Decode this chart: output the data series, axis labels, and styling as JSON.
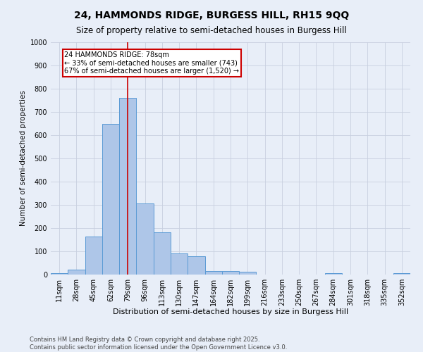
{
  "title1": "24, HAMMONDS RIDGE, BURGESS HILL, RH15 9QQ",
  "title2": "Size of property relative to semi-detached houses in Burgess Hill",
  "xlabel": "Distribution of semi-detached houses by size in Burgess Hill",
  "ylabel": "Number of semi-detached properties",
  "categories": [
    "11sqm",
    "28sqm",
    "45sqm",
    "62sqm",
    "79sqm",
    "96sqm",
    "113sqm",
    "130sqm",
    "147sqm",
    "164sqm",
    "182sqm",
    "199sqm",
    "216sqm",
    "233sqm",
    "250sqm",
    "267sqm",
    "284sqm",
    "301sqm",
    "318sqm",
    "335sqm",
    "352sqm"
  ],
  "values": [
    5,
    22,
    165,
    648,
    760,
    305,
    182,
    90,
    80,
    15,
    15,
    12,
    0,
    0,
    0,
    0,
    5,
    0,
    0,
    0,
    5
  ],
  "bar_color": "#aec6e8",
  "bar_edge_color": "#5b9bd5",
  "property_label": "24 HAMMONDS RIDGE: 78sqm",
  "pct_smaller": 33,
  "pct_larger": 67,
  "n_smaller": 743,
  "n_larger": 1520,
  "vline_color": "#cc0000",
  "vline_bin_index": 4,
  "ylim": [
    0,
    1000
  ],
  "yticks": [
    0,
    100,
    200,
    300,
    400,
    500,
    600,
    700,
    800,
    900,
    1000
  ],
  "footnote1": "Contains HM Land Registry data © Crown copyright and database right 2025.",
  "footnote2": "Contains public sector information licensed under the Open Government Licence v3.0.",
  "bg_color": "#e8eef8",
  "grid_color": "#c8d0e0",
  "title1_fontsize": 10,
  "title2_fontsize": 8.5,
  "xlabel_fontsize": 8,
  "ylabel_fontsize": 7.5,
  "tick_fontsize": 7,
  "annot_fontsize": 7,
  "footnote_fontsize": 6
}
